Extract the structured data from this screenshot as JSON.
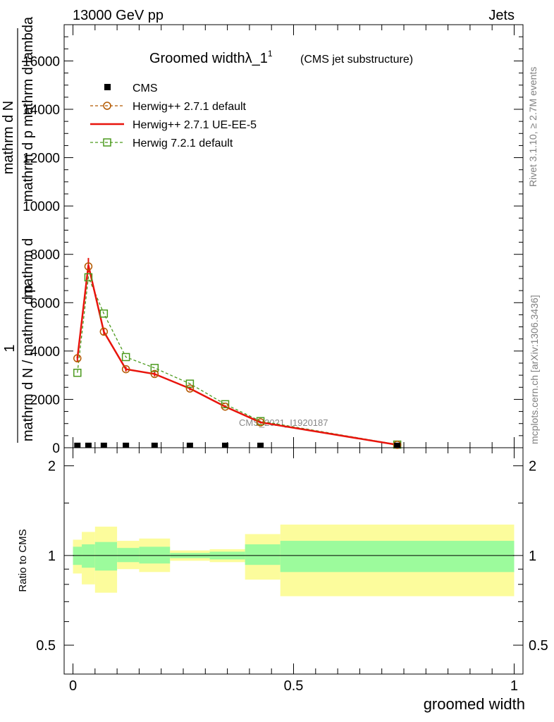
{
  "header": {
    "energy_label": "13000 GeV pp",
    "process_label": "Jets"
  },
  "side_labels": {
    "rivet": "Rivet 3.1.10, ≥ 2.7M events",
    "mcplots": "mcplots.cern.ch [arXiv:1306.3436]"
  },
  "colors": {
    "cms": "#000000",
    "herwigpp_default": "#b35900",
    "herwigpp_ueee5": "#e8140c",
    "herwig721": "#4c9a1e",
    "band_inner": "#9cfb9c",
    "band_outer": "#fcfc9c"
  },
  "chart_data": [
    {
      "type": "line",
      "panel": "main",
      "title": "Groomed widthλ_1",
      "title_sup": "1",
      "subtitle": "(CMS jet substructure)",
      "watermark": "CMS_2021_I1920187",
      "ylabel_parts": {
        "one": "1",
        "top": "mathrm d N",
        "bottom": "mathrm d N / mathrm d p",
        "numer": "mathrm d",
        "denom": "mathrm d p mathrm d lambda"
      },
      "xlim": [
        -0.02,
        1.02
      ],
      "ylim": [
        0,
        17500
      ],
      "yticks": [
        0,
        2000,
        4000,
        6000,
        8000,
        10000,
        12000,
        14000,
        16000
      ],
      "ytick_labels": [
        "0",
        "2000",
        "4000",
        "6000",
        "8000",
        "10000",
        "12000",
        "14000",
        "16000"
      ],
      "x": [
        0.01,
        0.035,
        0.07,
        0.12,
        0.185,
        0.265,
        0.345,
        0.425,
        0.735
      ],
      "series": [
        {
          "name": "CMS",
          "style": "marker-square",
          "values": [
            5,
            5,
            5,
            5,
            5,
            5,
            5,
            5,
            5
          ]
        },
        {
          "name": "Herwig++ 2.7.1 default",
          "style": "dashed-circle",
          "values": [
            3700,
            7500,
            4800,
            3250,
            3050,
            2450,
            1700,
            1050,
            120
          ]
        },
        {
          "name": "Herwig++ 2.7.1 UE-EE-5",
          "style": "solid",
          "values": [
            3700,
            7550,
            4800,
            3250,
            3050,
            2450,
            1700,
            1050,
            120
          ],
          "yerr": [
            150,
            300,
            150,
            100,
            100,
            80,
            60,
            50,
            20
          ]
        },
        {
          "name": "Herwig 7.2.1 default",
          "style": "dashed-square",
          "values": [
            3100,
            7050,
            5550,
            3750,
            3300,
            2650,
            1800,
            1100,
            130
          ]
        }
      ]
    },
    {
      "type": "area",
      "panel": "ratio",
      "ylabel": "Ratio to CMS",
      "xlabel": "groomed width",
      "xlim": [
        -0.02,
        1.02
      ],
      "ylim": [
        0.4,
        2.3
      ],
      "yticks": [
        0.5,
        1,
        2
      ],
      "ytick_labels": [
        "0.5",
        "1",
        "2"
      ],
      "xticks": [
        0,
        0.5,
        1
      ],
      "xtick_labels": [
        "0",
        "0.5",
        "1"
      ],
      "bin_edges": [
        0,
        0.02,
        0.05,
        0.1,
        0.15,
        0.22,
        0.31,
        0.39,
        0.47,
        1.0
      ],
      "band_inner": {
        "low": [
          0.93,
          0.91,
          0.89,
          0.95,
          0.94,
          0.98,
          0.97,
          0.93,
          0.88
        ],
        "high": [
          1.07,
          1.09,
          1.11,
          1.06,
          1.07,
          1.02,
          1.03,
          1.09,
          1.12
        ]
      },
      "band_outer": {
        "low": [
          0.87,
          0.8,
          0.75,
          0.9,
          0.88,
          0.96,
          0.95,
          0.83,
          0.73
        ],
        "high": [
          1.13,
          1.2,
          1.25,
          1.12,
          1.14,
          1.04,
          1.05,
          1.18,
          1.27
        ]
      },
      "reference": 1.0
    }
  ]
}
